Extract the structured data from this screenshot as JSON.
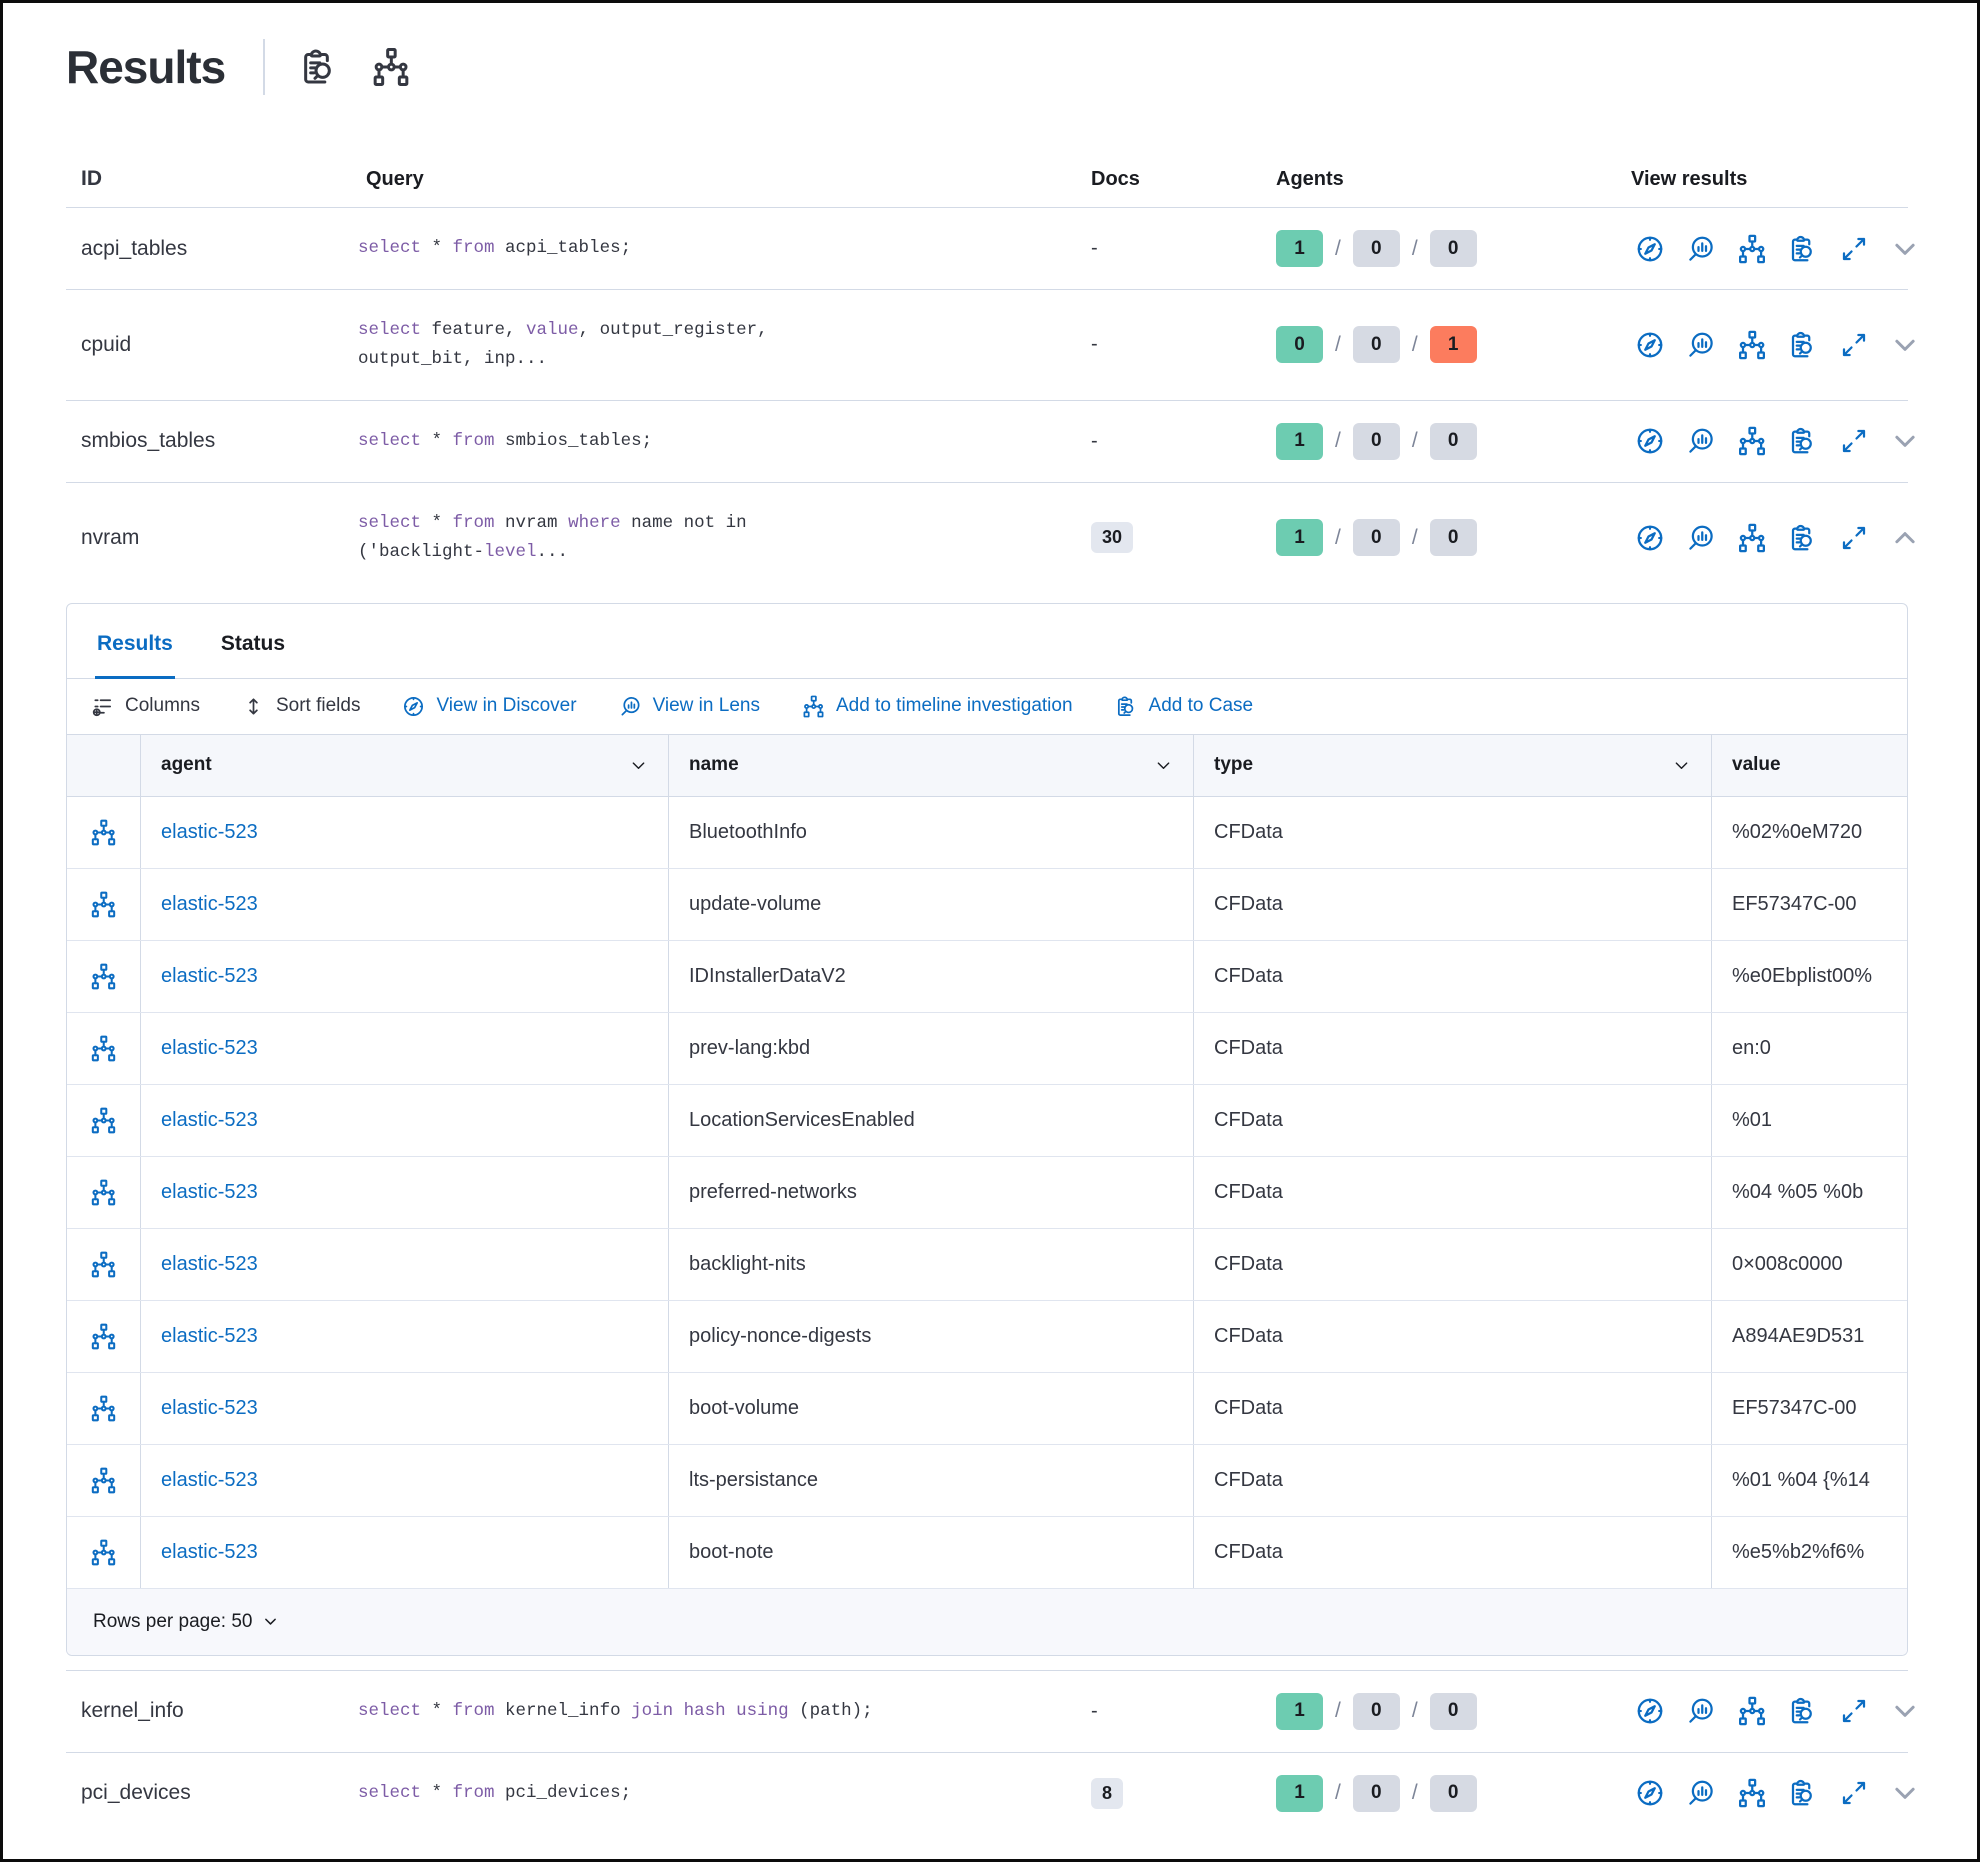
{
  "colors": {
    "blue": "#0b6cc2",
    "text": "#343741",
    "dark": "#1a1c21",
    "subtle": "#7d8598",
    "green": "#6dccb1",
    "graybadge": "#d6dae3",
    "red": "#fc7c5e",
    "purple": "#7d5ca6",
    "border": "#d3dae6",
    "headerbg": "#f5f7fb",
    "docsbadge": "#e3e7ef"
  },
  "header": {
    "title": "Results",
    "title_icons": [
      "query-details-icon",
      "pack-graph-icon"
    ]
  },
  "table": {
    "columns": [
      "ID",
      "Query",
      "Docs",
      "Agents",
      "View results"
    ]
  },
  "view_actions": [
    "view-in-discover",
    "view-in-lens",
    "add-to-timeline-investigation",
    "add-to-case",
    "expand",
    "toggle-details"
  ],
  "queries": [
    {
      "id": "acpi_tables",
      "docs": "-",
      "expanded": false,
      "agents": [
        {
          "v": "1",
          "c": "green"
        },
        {
          "v": "0",
          "c": "gray"
        },
        {
          "v": "0",
          "c": "gray"
        }
      ],
      "tokens": [
        {
          "t": "select",
          "kw": true
        },
        {
          "t": " * "
        },
        {
          "t": "from",
          "kw": true
        },
        {
          "t": " acpi_tables;"
        }
      ]
    },
    {
      "id": "cpuid",
      "docs": "-",
      "expanded": false,
      "agents": [
        {
          "v": "0",
          "c": "green"
        },
        {
          "v": "0",
          "c": "gray"
        },
        {
          "v": "1",
          "c": "red"
        }
      ],
      "tokens": [
        {
          "t": "select",
          "kw": true
        },
        {
          "t": " feature, "
        },
        {
          "t": "value",
          "kw": true
        },
        {
          "t": ", output_register,\noutput_bit, inp..."
        }
      ]
    },
    {
      "id": "smbios_tables",
      "docs": "-",
      "expanded": false,
      "agents": [
        {
          "v": "1",
          "c": "green"
        },
        {
          "v": "0",
          "c": "gray"
        },
        {
          "v": "0",
          "c": "gray"
        }
      ],
      "tokens": [
        {
          "t": "select",
          "kw": true
        },
        {
          "t": " * "
        },
        {
          "t": "from",
          "kw": true
        },
        {
          "t": " smbios_tables;"
        }
      ]
    },
    {
      "id": "nvram",
      "docs": "30",
      "expanded": true,
      "agents": [
        {
          "v": "1",
          "c": "green"
        },
        {
          "v": "0",
          "c": "gray"
        },
        {
          "v": "0",
          "c": "gray"
        }
      ],
      "tokens": [
        {
          "t": "select",
          "kw": true
        },
        {
          "t": " * "
        },
        {
          "t": "from",
          "kw": true
        },
        {
          "t": " nvram "
        },
        {
          "t": "where",
          "kw": true
        },
        {
          "t": " name not in\n('backlight-"
        },
        {
          "t": "level",
          "kw": true
        },
        {
          "t": "..."
        }
      ]
    },
    {
      "id": "kernel_info",
      "docs": "-",
      "expanded": false,
      "agents": [
        {
          "v": "1",
          "c": "green"
        },
        {
          "v": "0",
          "c": "gray"
        },
        {
          "v": "0",
          "c": "gray"
        }
      ],
      "tokens": [
        {
          "t": "select",
          "kw": true
        },
        {
          "t": " * "
        },
        {
          "t": "from",
          "kw": true
        },
        {
          "t": " kernel_info "
        },
        {
          "t": "join",
          "kw": true
        },
        {
          "t": " "
        },
        {
          "t": "hash",
          "kw": true
        },
        {
          "t": " "
        },
        {
          "t": "using",
          "kw": true
        },
        {
          "t": " (path);"
        }
      ]
    },
    {
      "id": "pci_devices",
      "docs": "8",
      "expanded": false,
      "agents": [
        {
          "v": "1",
          "c": "green"
        },
        {
          "v": "0",
          "c": "gray"
        },
        {
          "v": "0",
          "c": "gray"
        }
      ],
      "tokens": [
        {
          "t": "select",
          "kw": true
        },
        {
          "t": " * "
        },
        {
          "t": "from",
          "kw": true
        },
        {
          "t": " pci_devices;"
        }
      ]
    }
  ],
  "panel": {
    "tabs": [
      {
        "label": "Results",
        "active": true
      },
      {
        "label": "Status",
        "active": false
      }
    ],
    "toolbar": [
      {
        "label": "Columns",
        "icon": "columns-icon",
        "style": "dark"
      },
      {
        "label": "Sort fields",
        "icon": "sort-fields-icon",
        "style": "dark"
      },
      {
        "label": "View in Discover",
        "icon": "discover-icon",
        "style": "link"
      },
      {
        "label": "View in Lens",
        "icon": "lens-icon",
        "style": "link"
      },
      {
        "label": "Add to timeline investigation",
        "icon": "timeline-icon",
        "style": "link"
      },
      {
        "label": "Add to Case",
        "icon": "case-icon",
        "style": "link"
      }
    ],
    "grid": {
      "columns": [
        "agent",
        "name",
        "type",
        "value"
      ],
      "rows": [
        {
          "agent": "elastic-523",
          "name": "BluetoothInfo",
          "type": "CFData",
          "value": "%02%0eM720"
        },
        {
          "agent": "elastic-523",
          "name": "update-volume",
          "type": "CFData",
          "value": "EF57347C-00"
        },
        {
          "agent": "elastic-523",
          "name": "IDInstallerDataV2",
          "type": "CFData",
          "value": "%e0Ebplist00%"
        },
        {
          "agent": "elastic-523",
          "name": "prev-lang:kbd",
          "type": "CFData",
          "value": "en:0"
        },
        {
          "agent": "elastic-523",
          "name": "LocationServicesEnabled",
          "type": "CFData",
          "value": "%01"
        },
        {
          "agent": "elastic-523",
          "name": "preferred-networks",
          "type": "CFData",
          "value": "%04 %05 %0b"
        },
        {
          "agent": "elastic-523",
          "name": "backlight-nits",
          "type": "CFData",
          "value": "0×008c0000"
        },
        {
          "agent": "elastic-523",
          "name": "policy-nonce-digests",
          "type": "CFData",
          "value": "A894AE9D531"
        },
        {
          "agent": "elastic-523",
          "name": "boot-volume",
          "type": "CFData",
          "value": "EF57347C-00"
        },
        {
          "agent": "elastic-523",
          "name": "lts-persistance",
          "type": "CFData",
          "value": "%01 %04 {%14"
        },
        {
          "agent": "elastic-523",
          "name": "boot-note",
          "type": "CFData",
          "value": "%e5%b2%f6%"
        }
      ],
      "rows_per_page_label": "Rows per page: 50"
    }
  }
}
